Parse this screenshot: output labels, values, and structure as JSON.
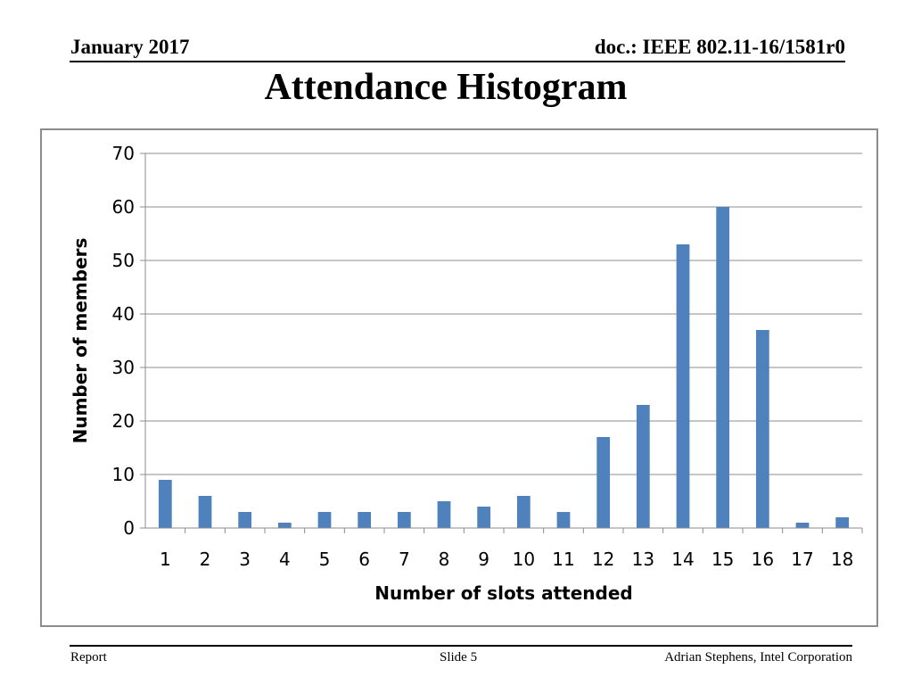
{
  "header": {
    "date": "January 2017",
    "doc": "doc.: IEEE 802.11-16/1581r0"
  },
  "slide_title": "Attendance Histogram",
  "footer": {
    "left": "Report",
    "center": "Slide 5",
    "right": "Adrian Stephens, Intel Corporation"
  },
  "chart_data": {
    "type": "bar",
    "title": "",
    "xlabel": "Number of slots attended",
    "ylabel": "Number of members",
    "categories": [
      "1",
      "2",
      "3",
      "4",
      "5",
      "6",
      "7",
      "8",
      "9",
      "10",
      "11",
      "12",
      "13",
      "14",
      "15",
      "16",
      "17",
      "18"
    ],
    "values": [
      9,
      6,
      3,
      1,
      3,
      3,
      3,
      5,
      4,
      6,
      3,
      17,
      23,
      53,
      60,
      37,
      1,
      2
    ],
    "ylim": [
      0,
      70
    ],
    "yticks": [
      0,
      10,
      20,
      30,
      40,
      50,
      60,
      70
    ],
    "grid": true,
    "legend": "none",
    "bar_color": "#4f81bd",
    "grid_color": "#8c8c8c"
  }
}
